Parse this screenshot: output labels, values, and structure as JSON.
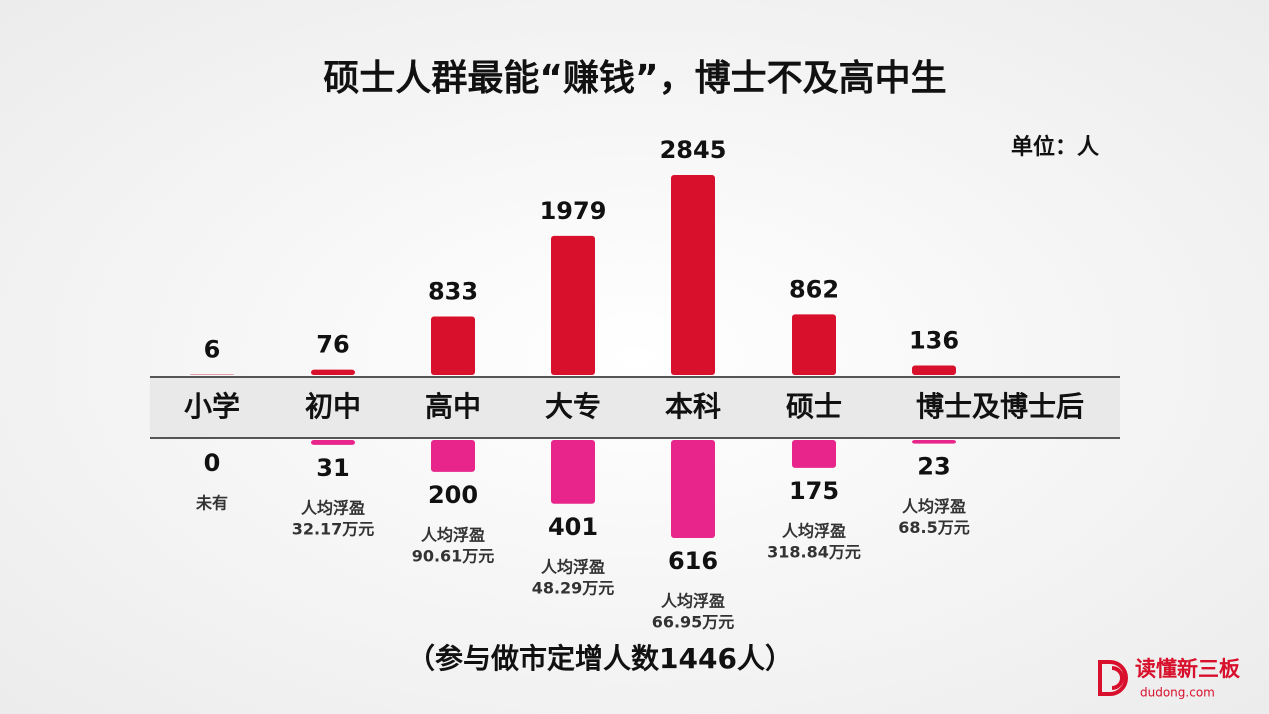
{
  "chart_data": {
    "type": "bar",
    "title": "硕士人群最能“赚钱”，博士不及高中生",
    "unit_label": "单位：人",
    "categories": [
      "小学",
      "初中",
      "高中",
      "大专",
      "本科",
      "硕士",
      "博士及博士后"
    ],
    "series": [
      {
        "color": "#d8102c",
        "values": [
          6,
          76,
          833,
          1979,
          2845,
          862,
          136
        ]
      },
      {
        "color": "#e8258a",
        "values": [
          0,
          31,
          200,
          401,
          616,
          175,
          23
        ]
      }
    ],
    "annotations": [
      [
        "未有"
      ],
      [
        "人均浮盈",
        "32.17万元"
      ],
      [
        "人均浮盈",
        "90.61万元"
      ],
      [
        "人均浮盈",
        "48.29万元"
      ],
      [
        "人均浮盈",
        "66.95万元"
      ],
      [
        "人均浮盈",
        "318.84万元"
      ],
      [
        "人均浮盈",
        "68.5万元"
      ]
    ],
    "footnote": "（参与做市定增人数1446人）",
    "logo": {
      "name": "读懂新三板",
      "url": "dudong.com"
    }
  }
}
